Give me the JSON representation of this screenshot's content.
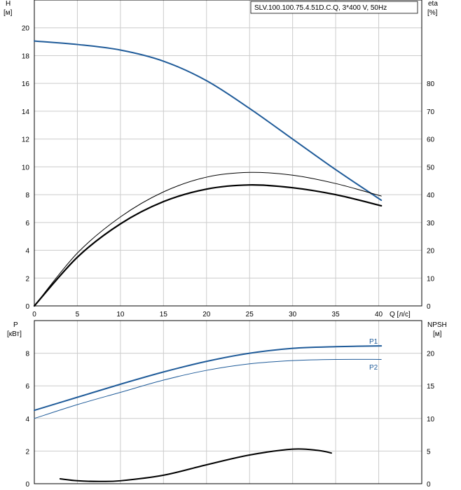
{
  "colors": {
    "grid": "#cccccc",
    "frame": "#000000",
    "blue": "#1f5b99",
    "black": "#000000"
  },
  "chart_data": [
    {
      "type": "line",
      "title": "SLV.100.100.75.4.51D.C.Q, 3*400 V, 50Hz",
      "xlabel": "Q [л/с]",
      "ylabel": [
        "H",
        "[м]"
      ],
      "y2label": [
        "eta",
        "[%]"
      ],
      "xlim": [
        0,
        45
      ],
      "ylim": [
        0,
        22
      ],
      "y2lim": [
        0,
        110
      ],
      "grid": true,
      "x_ticks": [
        "0",
        "5",
        "10",
        "15",
        "20",
        "25",
        "30",
        "35",
        "40"
      ],
      "y_ticks": [
        "0",
        "2",
        "4",
        "6",
        "8",
        "10",
        "12",
        "14",
        "16",
        "18",
        "20"
      ],
      "y2_ticks": [
        "0",
        "10",
        "20",
        "30",
        "40",
        "50",
        "60",
        "70",
        "80"
      ],
      "series": [
        {
          "axis": "left",
          "color": "#1f5b99",
          "width": 2,
          "x": [
            0,
            5,
            10,
            15,
            20,
            25,
            30,
            35,
            40.3
          ],
          "y": [
            19.05,
            18.8,
            18.4,
            17.6,
            16.2,
            14.2,
            12.0,
            9.8,
            7.6
          ]
        },
        {
          "axis": "right",
          "color": "#000000",
          "width": 1,
          "x": [
            0,
            5,
            10,
            15,
            20,
            25,
            30,
            35,
            40.3
          ],
          "y": [
            0,
            19.0,
            32.0,
            41.0,
            46.3,
            48.0,
            47.0,
            44.0,
            39.5
          ]
        },
        {
          "axis": "right",
          "color": "#000000",
          "width": 2.2,
          "x": [
            0,
            5,
            10,
            15,
            20,
            25,
            30,
            35,
            40.3
          ],
          "y": [
            0,
            17.5,
            29.5,
            37.5,
            42.0,
            43.5,
            42.5,
            40.0,
            36.0
          ]
        }
      ]
    },
    {
      "type": "line",
      "xlim": [
        0,
        45
      ],
      "ylim": [
        0,
        10
      ],
      "y2lim": [
        0,
        25
      ],
      "grid": true,
      "ylabel": [
        "P",
        "[кВт]"
      ],
      "y2label": [
        "NPSH",
        "[м]"
      ],
      "y_ticks": [
        "0",
        "2",
        "4",
        "6",
        "8"
      ],
      "y2_ticks": [
        "0",
        "5",
        "10",
        "15",
        "20"
      ],
      "series": [
        {
          "name": "P1",
          "axis": "left",
          "color": "#1f5b99",
          "width": 2,
          "x": [
            0,
            5,
            10,
            15,
            20,
            25,
            30,
            35,
            40.3
          ],
          "y": [
            4.5,
            5.3,
            6.1,
            6.85,
            7.5,
            8.0,
            8.3,
            8.4,
            8.45
          ]
        },
        {
          "name": "P2",
          "axis": "left",
          "color": "#1f5b99",
          "width": 1,
          "x": [
            0,
            5,
            10,
            15,
            20,
            25,
            30,
            35,
            40.3
          ],
          "y": [
            4.0,
            4.85,
            5.6,
            6.35,
            6.95,
            7.35,
            7.55,
            7.62,
            7.62
          ]
        },
        {
          "axis": "right",
          "color": "#000000",
          "width": 2,
          "x": [
            3,
            5,
            7.5,
            10,
            15,
            20,
            25,
            30,
            33,
            34.5
          ],
          "y": [
            0.75,
            0.45,
            0.35,
            0.45,
            1.3,
            2.9,
            4.4,
            5.3,
            5.1,
            4.7
          ]
        }
      ]
    }
  ]
}
